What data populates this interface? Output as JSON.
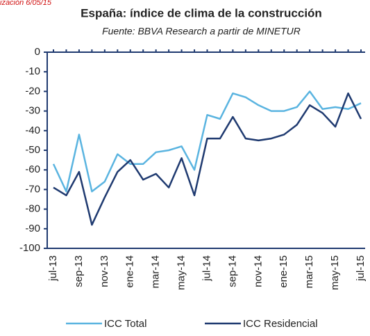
{
  "header_note": "ización 6/05/15",
  "chart_data": {
    "type": "line",
    "title": "España: índice de clima de la construcción",
    "subtitle": "Fuente: BBVA Research a partir de MINETUR",
    "categories": [
      "jul-13",
      null,
      "sep-13",
      null,
      "nov-13",
      null,
      "ene-14",
      null,
      "mar-14",
      null,
      "may-14",
      null,
      "jul-14",
      null,
      "sep-14",
      null,
      "nov-14",
      null,
      "ene-15",
      null,
      "mar-15",
      null,
      "may-15",
      null,
      "jul-15"
    ],
    "series": [
      {
        "name": "ICC Total",
        "color": "#5ab4e0",
        "values": [
          -57,
          -71,
          -42,
          -71,
          -66,
          -52,
          -57,
          -57,
          -51,
          -50,
          -48,
          -60,
          -32,
          -34,
          -21,
          -23,
          -27,
          -30,
          -30,
          -28,
          -20,
          -29,
          -28,
          -29,
          -26
        ]
      },
      {
        "name": "ICC Residencial",
        "color": "#1f3a70",
        "values": [
          -69,
          -73,
          -61,
          -88,
          -74,
          -61,
          -55,
          -65,
          -62,
          -69,
          -54,
          -73,
          -44,
          -44,
          -33,
          -44,
          -45,
          -44,
          -42,
          -37,
          -27,
          -31,
          -38,
          -21,
          -34
        ]
      }
    ],
    "ylim": [
      -100,
      0
    ],
    "yticks": [
      0,
      -10,
      -20,
      -30,
      -40,
      -50,
      -60,
      -70,
      -80,
      -90,
      -100
    ],
    "legend": "bottom"
  }
}
